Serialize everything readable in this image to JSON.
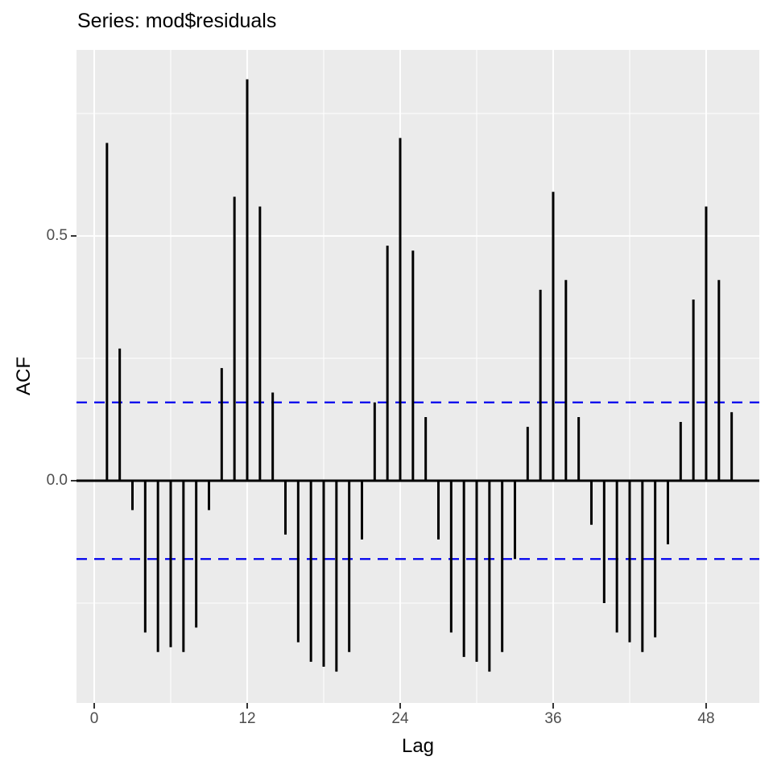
{
  "title": "Series: mod$residuals",
  "colors": {
    "panel_background": "#ebebeb",
    "grid": "#ffffff",
    "bar": "#000000",
    "zero_line": "#000000",
    "confidence_line": "#0000ee",
    "tick_label": "#4d4d4d",
    "tick_mark": "#333333",
    "text": "#000000"
  },
  "chart_data": {
    "type": "bar",
    "subtype": "acf-lollipop",
    "title": "Series: mod$residuals",
    "xlabel": "Lag",
    "ylabel": "ACF",
    "x": [
      1,
      2,
      3,
      4,
      5,
      6,
      7,
      8,
      9,
      10,
      11,
      12,
      13,
      14,
      15,
      16,
      17,
      18,
      19,
      20,
      21,
      22,
      23,
      24,
      25,
      26,
      27,
      28,
      29,
      30,
      31,
      32,
      33,
      34,
      35,
      36,
      37,
      38,
      39,
      40,
      41,
      42,
      43,
      44,
      45,
      46,
      47,
      48,
      49,
      50
    ],
    "values": [
      0.69,
      0.27,
      -0.06,
      -0.31,
      -0.35,
      -0.34,
      -0.35,
      -0.3,
      -0.06,
      0.23,
      0.58,
      0.82,
      0.56,
      0.18,
      -0.11,
      -0.33,
      -0.37,
      -0.38,
      -0.39,
      -0.35,
      -0.12,
      0.16,
      0.48,
      0.7,
      0.47,
      0.13,
      -0.12,
      -0.31,
      -0.36,
      -0.37,
      -0.39,
      -0.35,
      -0.16,
      0.11,
      0.39,
      0.59,
      0.41,
      0.13,
      -0.09,
      -0.25,
      -0.31,
      -0.33,
      -0.35,
      -0.32,
      -0.13,
      0.12,
      0.37,
      0.56,
      0.41,
      0.14
    ],
    "confidence_bounds": {
      "upper": 0.16,
      "lower": -0.16,
      "style": "dashed",
      "color": "#0000ee"
    },
    "zero_line": 0.0,
    "xlim": [
      -1.39,
      52.17
    ],
    "ylim": [
      -0.454,
      0.88
    ],
    "x_major_ticks": [
      0,
      12,
      24,
      36,
      48
    ],
    "x_tick_labels": [
      "0",
      "12",
      "24",
      "36",
      "48"
    ],
    "x_minor_gridlines": [
      6,
      18,
      30,
      42
    ],
    "y_major_ticks": [
      0.0,
      0.5
    ],
    "y_tick_labels": [
      "0.0",
      "0.5"
    ],
    "y_minor_gridlines": [
      -0.25,
      0.25,
      0.75
    ],
    "grid": true,
    "legend": "none",
    "theme": "ggplot2-grey"
  }
}
